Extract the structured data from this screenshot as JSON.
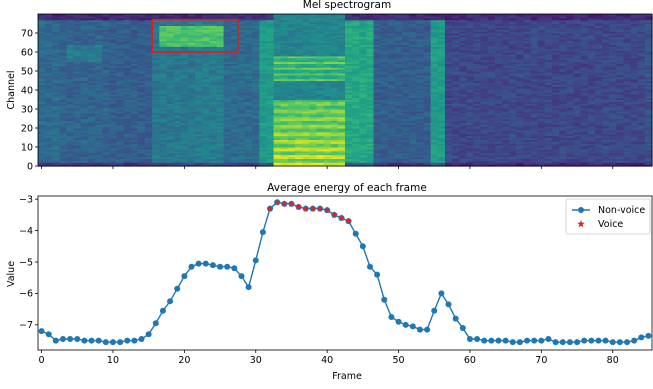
{
  "figure_background": "#ffffff",
  "chart_data": [
    {
      "type": "heatmap",
      "title": "Mel spectrogram",
      "xlabel": "",
      "ylabel": "Channel",
      "colormap": "viridis",
      "yticks": [
        0,
        10,
        20,
        30,
        40,
        50,
        60,
        70
      ],
      "xlim": [
        0,
        85
      ],
      "ylim": [
        0,
        79
      ],
      "annotations": [
        {
          "type": "rectangle",
          "color": "#e41a1c",
          "x_range": [
            16,
            28
          ],
          "y_range": [
            60,
            77
          ]
        }
      ],
      "bands": [
        {
          "x": [
            0,
            3
          ],
          "level": 0.35
        },
        {
          "x": [
            3,
            10
          ],
          "level": 0.32
        },
        {
          "x": [
            10,
            16
          ],
          "level": 0.3
        },
        {
          "x": [
            16,
            22
          ],
          "level": 0.4
        },
        {
          "x": [
            22,
            26
          ],
          "level": 0.42
        },
        {
          "x": [
            26,
            31
          ],
          "level": 0.35
        },
        {
          "x": [
            31,
            33
          ],
          "level": 0.55
        },
        {
          "x": [
            33,
            43
          ],
          "level": 0.75
        },
        {
          "x": [
            43,
            47
          ],
          "level": 0.6
        },
        {
          "x": [
            47,
            55
          ],
          "level": 0.3
        },
        {
          "x": [
            55,
            57
          ],
          "level": 0.55
        },
        {
          "x": [
            57,
            85
          ],
          "level": 0.22
        }
      ]
    },
    {
      "type": "line",
      "title": "Average energy of each frame",
      "xlabel": "Frame",
      "ylabel": "Value",
      "xlim": [
        -0.5,
        85.5
      ],
      "ylim": [
        -7.8,
        -2.9
      ],
      "xticks": [
        0,
        10,
        20,
        30,
        40,
        50,
        60,
        70,
        80
      ],
      "yticks": [
        -7,
        -6,
        -5,
        -4,
        -3
      ],
      "legend_position": "top-right",
      "series": [
        {
          "name": "Non-voice",
          "color": "#1f77b4",
          "marker": "circle",
          "x": [
            0,
            1,
            2,
            3,
            4,
            5,
            6,
            7,
            8,
            9,
            10,
            11,
            12,
            13,
            14,
            15,
            16,
            17,
            18,
            19,
            20,
            21,
            22,
            23,
            24,
            25,
            26,
            27,
            28,
            29,
            30,
            31,
            32,
            33,
            34,
            35,
            36,
            37,
            38,
            39,
            40,
            41,
            42,
            43,
            44,
            45,
            46,
            47,
            48,
            49,
            50,
            51,
            52,
            53,
            54,
            55,
            56,
            57,
            58,
            59,
            60,
            61,
            62,
            63,
            64,
            65,
            66,
            67,
            68,
            69,
            70,
            71,
            72,
            73,
            74,
            75,
            76,
            77,
            78,
            79,
            80,
            81,
            82,
            83,
            84,
            85
          ],
          "y": [
            -7.2,
            -7.3,
            -7.5,
            -7.45,
            -7.45,
            -7.45,
            -7.5,
            -7.5,
            -7.5,
            -7.55,
            -7.55,
            -7.55,
            -7.5,
            -7.5,
            -7.45,
            -7.3,
            -6.95,
            -6.55,
            -6.25,
            -5.85,
            -5.45,
            -5.15,
            -5.05,
            -5.05,
            -5.1,
            -5.15,
            -5.15,
            -5.2,
            -5.45,
            -5.8,
            -4.95,
            -4.05,
            -3.3,
            -3.1,
            -3.15,
            -3.15,
            -3.25,
            -3.3,
            -3.3,
            -3.3,
            -3.35,
            -3.5,
            -3.6,
            -3.7,
            -4.1,
            -4.5,
            -5.15,
            -5.4,
            -6.2,
            -6.75,
            -6.9,
            -7.0,
            -7.05,
            -7.15,
            -7.15,
            -6.55,
            -6.0,
            -6.35,
            -6.8,
            -7.1,
            -7.45,
            -7.45,
            -7.5,
            -7.5,
            -7.5,
            -7.5,
            -7.55,
            -7.55,
            -7.5,
            -7.5,
            -7.5,
            -7.45,
            -7.55,
            -7.55,
            -7.55,
            -7.55,
            -7.5,
            -7.5,
            -7.5,
            -7.5,
            -7.55,
            -7.55,
            -7.55,
            -7.5,
            -7.4,
            -7.35
          ]
        },
        {
          "name": "Voice",
          "color": "#d62728",
          "marker": "star",
          "x": [
            32,
            33,
            34,
            35,
            36,
            37,
            38,
            39,
            40,
            41,
            42,
            43
          ],
          "y": [
            -3.3,
            -3.1,
            -3.15,
            -3.15,
            -3.25,
            -3.3,
            -3.3,
            -3.3,
            -3.35,
            -3.5,
            -3.6,
            -3.7
          ]
        }
      ]
    }
  ]
}
